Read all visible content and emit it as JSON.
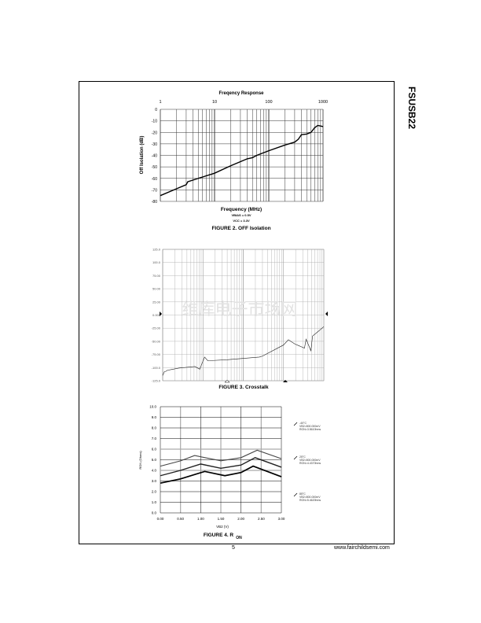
{
  "side_title": "FSUSB22",
  "footer": {
    "page": "5",
    "url": "www.fairchildsemi.com"
  },
  "watermark": "维库电子市场网",
  "chart_data": [
    {
      "type": "line",
      "title": "Freqency Response",
      "caption": "FIGURE 2. OFF Isolation",
      "xlabel": "Frequency (MHz)",
      "ylabel": "Off Isolation (dB)",
      "xscale": "log",
      "xlim": [
        1,
        1000
      ],
      "ylim": [
        -80,
        0
      ],
      "xticks": [
        "1",
        "10",
        "100",
        "1000"
      ],
      "yticks": [
        "0",
        "-10",
        "-20",
        "-30",
        "-40",
        "-50",
        "-60",
        "-70",
        "-80"
      ],
      "notes": [
        "VBIAS = 0.5V",
        "VCC = 3.3V"
      ],
      "grid": true,
      "series": [
        {
          "x": [
            1,
            2,
            3,
            3.2,
            5,
            10,
            20,
            40,
            50,
            60,
            100,
            200,
            300,
            350,
            400,
            500,
            600,
            700,
            800,
            900,
            1000
          ],
          "y": [
            -75,
            -69,
            -65.5,
            -63,
            -60,
            -55.5,
            -49,
            -43,
            -42,
            -40,
            -36,
            -31,
            -28.5,
            -26,
            -22,
            -21.5,
            -20,
            -16,
            -14,
            -14.5,
            -15
          ]
        }
      ]
    },
    {
      "type": "line",
      "caption": "FIGURE 3. Crosstalk",
      "ylim": [
        -125,
        125
      ],
      "xlim": [
        0,
        100
      ],
      "grid": true,
      "yticks": [
        "125.0",
        "100.0",
        "75.00",
        "50.00",
        "25.00",
        "0.000",
        "-25.00",
        "-50.00",
        "-75.00",
        "-100.0",
        "-125.0"
      ],
      "series": [
        {
          "x": [
            0,
            1,
            2,
            3,
            5,
            10,
            20,
            23,
            26,
            28,
            40,
            60,
            62,
            75,
            78,
            82,
            88,
            89,
            92,
            93,
            97,
            100
          ],
          "y": [
            -115,
            -108,
            -107,
            -105,
            -104,
            -101,
            -98,
            -103,
            -80,
            -87,
            -85,
            -80,
            -78,
            -57,
            -47,
            -55,
            -63,
            -46,
            -68,
            -40,
            -30,
            -22
          ]
        }
      ]
    },
    {
      "type": "line",
      "caption": "FIGURE 4. R",
      "caption_sub": "ON",
      "xlabel": "V",
      "xlabel_sub": "B2",
      "xlabel_unit": "(V)",
      "ylabel": "R",
      "ylabel_sub": "ON",
      "ylabel_unit": "(Ohms)",
      "xlim": [
        0,
        3
      ],
      "ylim": [
        0,
        10
      ],
      "grid": true,
      "xticks": [
        "0.00",
        "0.50",
        "1.00",
        "1.50",
        "2.00",
        "2.50",
        "3.00"
      ],
      "yticks": [
        "10.0",
        "9.0",
        "8.0",
        "7.0",
        "6.0",
        "5.0",
        "4.0",
        "3.0",
        "2.0",
        "1.0",
        "0.0"
      ],
      "series": [
        {
          "name": "-40°C",
          "legend": [
            "-40°C",
            "VB2=800.000mV",
            "RON=3.5610hms"
          ],
          "x": [
            0,
            0.5,
            0.85,
            1.5,
            2.0,
            2.4,
            3.0
          ],
          "y": [
            4.4,
            4.9,
            5.4,
            4.9,
            5.2,
            5.9,
            5.1
          ]
        },
        {
          "name": "25°C",
          "legend": [
            "25°C",
            "VB2=800.000mV",
            "RON=4.4370hms"
          ],
          "x": [
            0,
            0.5,
            1.0,
            1.5,
            2.0,
            2.35,
            3.0
          ],
          "y": [
            3.5,
            4.0,
            4.6,
            4.2,
            4.5,
            5.2,
            4.3
          ]
        },
        {
          "name": "85°C",
          "legend": [
            "85°C",
            "VB2=800.000mV",
            "RON=5.4620hms"
          ],
          "x": [
            0,
            0.5,
            1.1,
            1.6,
            2.0,
            2.3,
            3.0
          ],
          "y": [
            2.8,
            3.2,
            3.9,
            3.5,
            3.8,
            4.4,
            3.4
          ]
        }
      ]
    }
  ]
}
